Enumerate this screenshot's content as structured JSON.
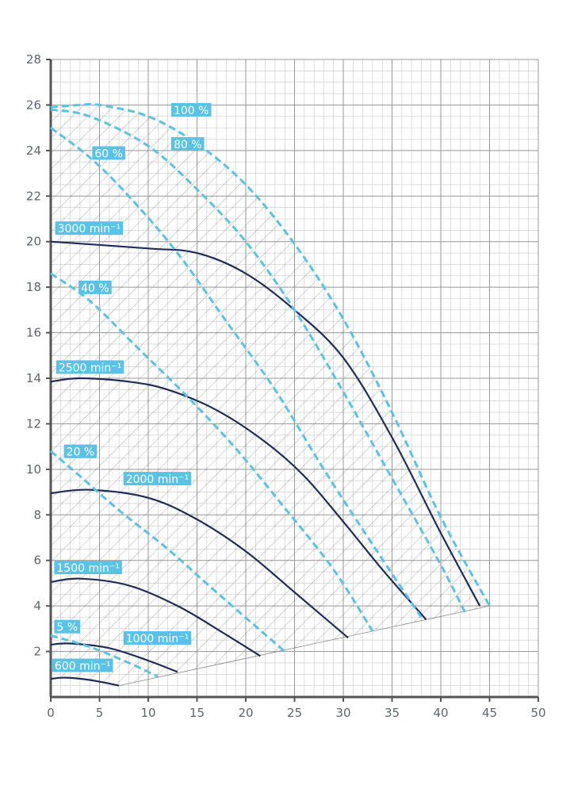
{
  "chart_data": {
    "type": "line",
    "title": "",
    "xlabel": "",
    "ylabel": "",
    "xlim": [
      0,
      50
    ],
    "ylim": [
      0,
      28
    ],
    "x_ticks": [
      0,
      5,
      10,
      15,
      20,
      25,
      30,
      35,
      40,
      45,
      50
    ],
    "y_ticks": [
      2,
      4,
      6,
      8,
      10,
      12,
      14,
      16,
      18,
      20,
      22,
      24,
      26,
      28
    ],
    "grid": true,
    "hatched_region": "operating-range",
    "colors": {
      "speed": "#1f2d5a",
      "efficiency": "#5bc2e7",
      "grid_major": "#999999",
      "grid_minor": "#c8c8c8",
      "axis": "#555555"
    },
    "speed_curves": [
      {
        "label": "3000 min⁻¹",
        "label_at": [
          0.7,
          20.4
        ],
        "points": [
          [
            0,
            20
          ],
          [
            10,
            19.7
          ],
          [
            15,
            19.5
          ],
          [
            20,
            18.6
          ],
          [
            25,
            17.0
          ],
          [
            30,
            14.9
          ],
          [
            35,
            11.4
          ],
          [
            40,
            7.2
          ],
          [
            44,
            4.0
          ]
        ]
      },
      {
        "label": "2500 min⁻¹",
        "label_at": [
          0.8,
          14.3
        ],
        "points": [
          [
            0,
            13.85
          ],
          [
            3,
            14.0
          ],
          [
            8,
            13.85
          ],
          [
            12,
            13.5
          ],
          [
            17,
            12.6
          ],
          [
            22,
            11.2
          ],
          [
            26,
            9.7
          ],
          [
            30,
            7.7
          ],
          [
            34,
            5.6
          ],
          [
            38.5,
            3.4
          ]
        ]
      },
      {
        "label": "2000 min⁻¹",
        "label_at": [
          7.7,
          9.4
        ],
        "points": [
          [
            0,
            8.95
          ],
          [
            4,
            9.1
          ],
          [
            10,
            8.75
          ],
          [
            15,
            7.8
          ],
          [
            20,
            6.4
          ],
          [
            25,
            4.6
          ],
          [
            30.5,
            2.6
          ]
        ]
      },
      {
        "label": "1500 min⁻¹",
        "label_at": [
          0.6,
          5.5
        ],
        "points": [
          [
            0,
            5.05
          ],
          [
            3,
            5.2
          ],
          [
            8,
            4.9
          ],
          [
            13,
            4.0
          ],
          [
            17,
            3.0
          ],
          [
            21.5,
            1.8
          ]
        ]
      },
      {
        "label": "1000 min⁻¹",
        "label_at": [
          7.7,
          2.4
        ],
        "points": [
          [
            0,
            2.3
          ],
          [
            2,
            2.35
          ],
          [
            6,
            2.15
          ],
          [
            10,
            1.6
          ],
          [
            13,
            1.1
          ]
        ]
      },
      {
        "label": "600 min⁻¹",
        "label_at": [
          0.4,
          1.2
        ],
        "points": [
          [
            0,
            0.8
          ],
          [
            1.5,
            0.85
          ],
          [
            4,
            0.75
          ],
          [
            7,
            0.5
          ]
        ]
      }
    ],
    "efficiency_curves": [
      {
        "label": "100 %",
        "label_at": [
          12.6,
          25.6
        ],
        "points": [
          [
            0,
            25.9
          ],
          [
            3,
            26.0
          ],
          [
            5,
            26.0
          ],
          [
            10,
            25.5
          ],
          [
            15,
            24.3
          ],
          [
            20,
            22.5
          ],
          [
            25,
            19.9
          ],
          [
            30,
            16.6
          ],
          [
            35,
            12.5
          ],
          [
            40,
            7.9
          ],
          [
            45,
            4.0
          ]
        ]
      },
      {
        "label": "80 %",
        "label_at": [
          12.6,
          24.1
        ],
        "points": [
          [
            0,
            25.8
          ],
          [
            4,
            25.5
          ],
          [
            10,
            24.2
          ],
          [
            15,
            22.3
          ],
          [
            20,
            20.0
          ],
          [
            25,
            17.0
          ],
          [
            30,
            13.4
          ],
          [
            35,
            9.6
          ],
          [
            40,
            5.8
          ],
          [
            42.5,
            3.7
          ]
        ]
      },
      {
        "label": "60 %",
        "label_at": [
          4.5,
          23.7
        ],
        "points": [
          [
            0,
            25.0
          ],
          [
            4,
            23.7
          ],
          [
            8,
            22.0
          ],
          [
            13,
            19.5
          ],
          [
            18,
            16.5
          ],
          [
            23,
            13.5
          ],
          [
            28,
            10.0
          ],
          [
            33,
            6.7
          ],
          [
            38,
            3.5
          ]
        ]
      },
      {
        "label": "40 %",
        "label_at": [
          3.1,
          17.8
        ],
        "points": [
          [
            0,
            18.6
          ],
          [
            4,
            17.4
          ],
          [
            9,
            15.3
          ],
          [
            14,
            13.2
          ],
          [
            19,
            10.9
          ],
          [
            24,
            8.3
          ],
          [
            29,
            5.6
          ],
          [
            33,
            2.9
          ]
        ]
      },
      {
        "label": "20 %",
        "label_at": [
          1.6,
          10.6
        ],
        "points": [
          [
            0,
            10.8
          ],
          [
            3,
            9.7
          ],
          [
            7,
            8.2
          ],
          [
            12,
            6.5
          ],
          [
            17,
            4.6
          ],
          [
            24,
            2.0
          ]
        ]
      },
      {
        "label": "5 %",
        "label_at": [
          0.6,
          2.9
        ],
        "points": [
          [
            0,
            2.7
          ],
          [
            4,
            2.2
          ],
          [
            8,
            1.5
          ],
          [
            11,
            0.9
          ]
        ]
      }
    ],
    "boundary_line": [
      [
        7,
        0.5
      ],
      [
        45,
        4.0
      ]
    ]
  }
}
